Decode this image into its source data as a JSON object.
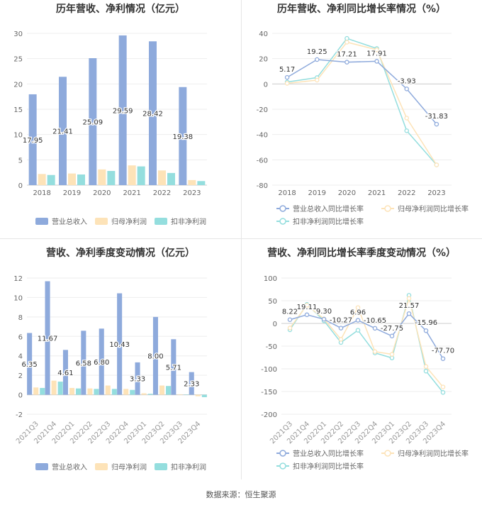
{
  "footer": {
    "source": "数据来源：恒生聚源"
  },
  "colors": {
    "revenue": "#8eaadc",
    "net_profit": "#fde3b8",
    "deducted_net_profit": "#94dede",
    "axis_text": "#666666",
    "grid": "#eeeeee"
  },
  "chart_data": [
    {
      "id": "annual-values",
      "type": "bar",
      "title": "历年营收、净利情况（亿元）",
      "categories": [
        "2018",
        "2019",
        "2020",
        "2021",
        "2022",
        "2023"
      ],
      "ylim": [
        0,
        30
      ],
      "yticks": [
        0,
        5,
        10,
        15,
        20,
        25,
        30
      ],
      "grid": true,
      "legend_position": "bottom",
      "series": [
        {
          "name": "营业总收入",
          "values": [
            17.95,
            21.41,
            25.09,
            29.59,
            28.42,
            19.38
          ],
          "labels": [
            "17.95",
            "21.41",
            "25.09",
            "29.59",
            "28.42",
            "19.38"
          ]
        },
        {
          "name": "归母净利润",
          "values": [
            2.2,
            2.3,
            3.1,
            3.9,
            2.9,
            1.0
          ]
        },
        {
          "name": "扣非净利润",
          "values": [
            2.0,
            2.1,
            2.8,
            3.7,
            2.4,
            0.8
          ]
        }
      ]
    },
    {
      "id": "annual-growth",
      "type": "line",
      "title": "历年营收、净利同比增长率情况（%）",
      "categories": [
        "2018",
        "2019",
        "2020",
        "2021",
        "2022",
        "2023"
      ],
      "ylim": [
        -80,
        40
      ],
      "yticks": [
        -80,
        -60,
        -40,
        -20,
        0,
        20,
        40
      ],
      "grid": true,
      "legend_position": "bottom",
      "series": [
        {
          "name": "营业总收入同比增长率",
          "values": [
            5.17,
            19.25,
            17.21,
            17.91,
            -3.93,
            -31.83
          ],
          "labels": [
            "5.17",
            "19.25",
            "17.21",
            "17.91",
            "-3.93",
            "-31.83"
          ]
        },
        {
          "name": "归母净利润同比增长率",
          "values": [
            0.5,
            3,
            33,
            27,
            -27,
            -64
          ]
        },
        {
          "name": "扣非净利润同比增长率",
          "values": [
            1.5,
            5,
            36,
            28,
            -37,
            -64
          ]
        }
      ]
    },
    {
      "id": "quarterly-values",
      "type": "bar",
      "title": "营收、净利季度变动情况（亿元）",
      "categories": [
        "2021Q3",
        "2021Q4",
        "2022Q1",
        "2022Q2",
        "2022Q3",
        "2022Q4",
        "2023Q1",
        "2023Q2",
        "2023Q3",
        "2023Q4"
      ],
      "ylim": [
        -2,
        12
      ],
      "yticks": [
        -2,
        0,
        2,
        4,
        6,
        8,
        10,
        12
      ],
      "grid": true,
      "legend_position": "bottom",
      "series": [
        {
          "name": "营业总收入",
          "values": [
            6.35,
            11.67,
            4.61,
            6.58,
            6.8,
            10.43,
            3.33,
            8.0,
            5.71,
            2.33
          ],
          "labels": [
            "6.35",
            "11.67",
            "4.61",
            "6.58",
            "6.80",
            "10.43",
            "3.33",
            "8.00",
            "5.71",
            "2.33"
          ]
        },
        {
          "name": "归母净利润",
          "values": [
            0.75,
            1.45,
            0.7,
            0.65,
            0.95,
            0.6,
            0.15,
            0.95,
            0.05,
            -0.15
          ]
        },
        {
          "name": "扣非净利润",
          "values": [
            0.7,
            1.35,
            0.65,
            0.6,
            0.6,
            0.5,
            0.1,
            0.9,
            0.03,
            -0.25
          ]
        }
      ]
    },
    {
      "id": "quarterly-growth",
      "type": "line",
      "title": "营收、净利同比增长率季度变动情况（%）",
      "categories": [
        "2021Q3",
        "2021Q4",
        "2022Q1",
        "2022Q2",
        "2022Q3",
        "2022Q4",
        "2023Q1",
        "2023Q2",
        "2023Q3",
        "2023Q4"
      ],
      "ylim": [
        -200,
        100
      ],
      "yticks": [
        -200,
        -150,
        -100,
        -50,
        0,
        50,
        100
      ],
      "grid": true,
      "legend_position": "bottom",
      "series": [
        {
          "name": "营业总收入同比增长率",
          "values": [
            8.22,
            19.11,
            9.3,
            -10.27,
            6.96,
            -10.65,
            -27.75,
            21.57,
            -15.96,
            -77.7
          ],
          "labels": [
            "8.22",
            "19.11",
            "9.30",
            "-10.27",
            "6.96",
            "-10.65",
            "-27.75",
            "21.57",
            "-15.96",
            "-77.70"
          ]
        },
        {
          "name": "归母净利润同比增长率",
          "values": [
            -10,
            40,
            10,
            -35,
            35,
            -62,
            -68,
            55,
            -95,
            -140
          ]
        },
        {
          "name": "扣非净利润同比增长率",
          "values": [
            -14,
            42,
            6,
            -42,
            -15,
            -65,
            -76,
            62,
            -105,
            -152
          ]
        }
      ]
    }
  ]
}
